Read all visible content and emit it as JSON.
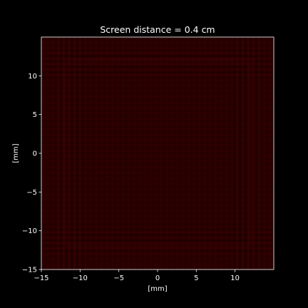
{
  "chart_data": {
    "type": "heatmap",
    "title": "Screen distance = 0.4 cm",
    "xlabel": "[mm]",
    "ylabel": "[mm]",
    "xlim": [
      -15,
      15
    ],
    "ylim": [
      -15,
      15
    ],
    "x_ticks": [
      -15,
      -10,
      -5,
      0,
      5,
      10
    ],
    "y_ticks": [
      -15,
      -10,
      -5,
      0,
      5,
      10
    ],
    "x_tick_labels": [
      "−15",
      "−10",
      "−5",
      "0",
      "5",
      "10"
    ],
    "y_tick_labels": [
      "−15",
      "−10",
      "−5",
      "0",
      "5",
      "10"
    ],
    "grid": false,
    "colors": {
      "background": "#000000",
      "field": "#2a0000",
      "fringe": "#3d0303",
      "fringe_dark": "#160000",
      "axes": "#ffffff"
    },
    "features": {
      "square_aperture_edge_mm": 12,
      "fringe_band_mm": [
        9.5,
        13
      ]
    }
  }
}
